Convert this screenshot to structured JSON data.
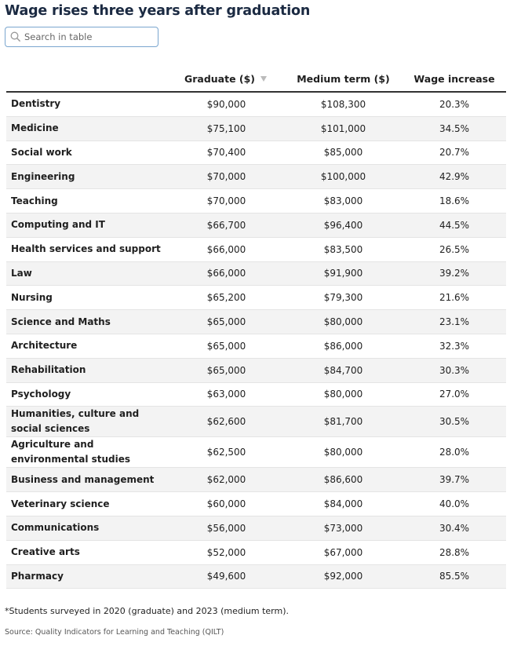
{
  "header": {
    "title": "Wage rises three years after graduation",
    "search_placeholder": "Search in table"
  },
  "table": {
    "columns": [
      "Graduate ($)",
      "Medium term ($)",
      "Wage increase"
    ],
    "rows": [
      [
        "Dentistry",
        "$90,000",
        "$108,300",
        "20.3%"
      ],
      [
        "Medicine",
        "$75,100",
        "$101,000",
        "34.5%"
      ],
      [
        "Social work",
        "$70,400",
        "$85,000",
        "20.7%"
      ],
      [
        "Engineering",
        "$70,000",
        "$100,000",
        "42.9%"
      ],
      [
        "Teaching",
        "$70,000",
        "$83,000",
        "18.6%"
      ],
      [
        "Computing and IT",
        "$66,700",
        "$96,400",
        "44.5%"
      ],
      [
        "Health services and support",
        "$66,000",
        "$83,500",
        "26.5%"
      ],
      [
        "Law",
        "$66,000",
        "$91,900",
        "39.2%"
      ],
      [
        "Nursing",
        "$65,200",
        "$79,300",
        "21.6%"
      ],
      [
        "Science and Maths",
        "$65,000",
        "$80,000",
        "23.1%"
      ],
      [
        "Architecture",
        "$65,000",
        "$86,000",
        "32.3%"
      ],
      [
        "Rehabilitation",
        "$65,000",
        "$84,700",
        "30.3%"
      ],
      [
        "Psychology",
        "$63,000",
        "$80,000",
        "27.0%"
      ],
      [
        "Humanities, culture and social sciences",
        "$62,600",
        "$81,700",
        "30.5%"
      ],
      [
        "Agriculture and environmental studies",
        "$62,500",
        "$80,000",
        "28.0%"
      ],
      [
        "Business and management",
        "$62,000",
        "$86,600",
        "39.7%"
      ],
      [
        "Veterinary science",
        "$60,000",
        "$84,000",
        "40.0%"
      ],
      [
        "Communications",
        "$56,000",
        "$73,000",
        "30.4%"
      ],
      [
        "Creative arts",
        "$52,000",
        "$67,000",
        "28.8%"
      ],
      [
        "Pharmacy",
        "$49,600",
        "$92,000",
        "85.5%"
      ]
    ]
  },
  "footer": {
    "note": "*Students surveyed in 2020 (graduate) and 2023 (medium term).",
    "source": "Source: Quality Indicators for Learning and Teaching (QILT)"
  }
}
